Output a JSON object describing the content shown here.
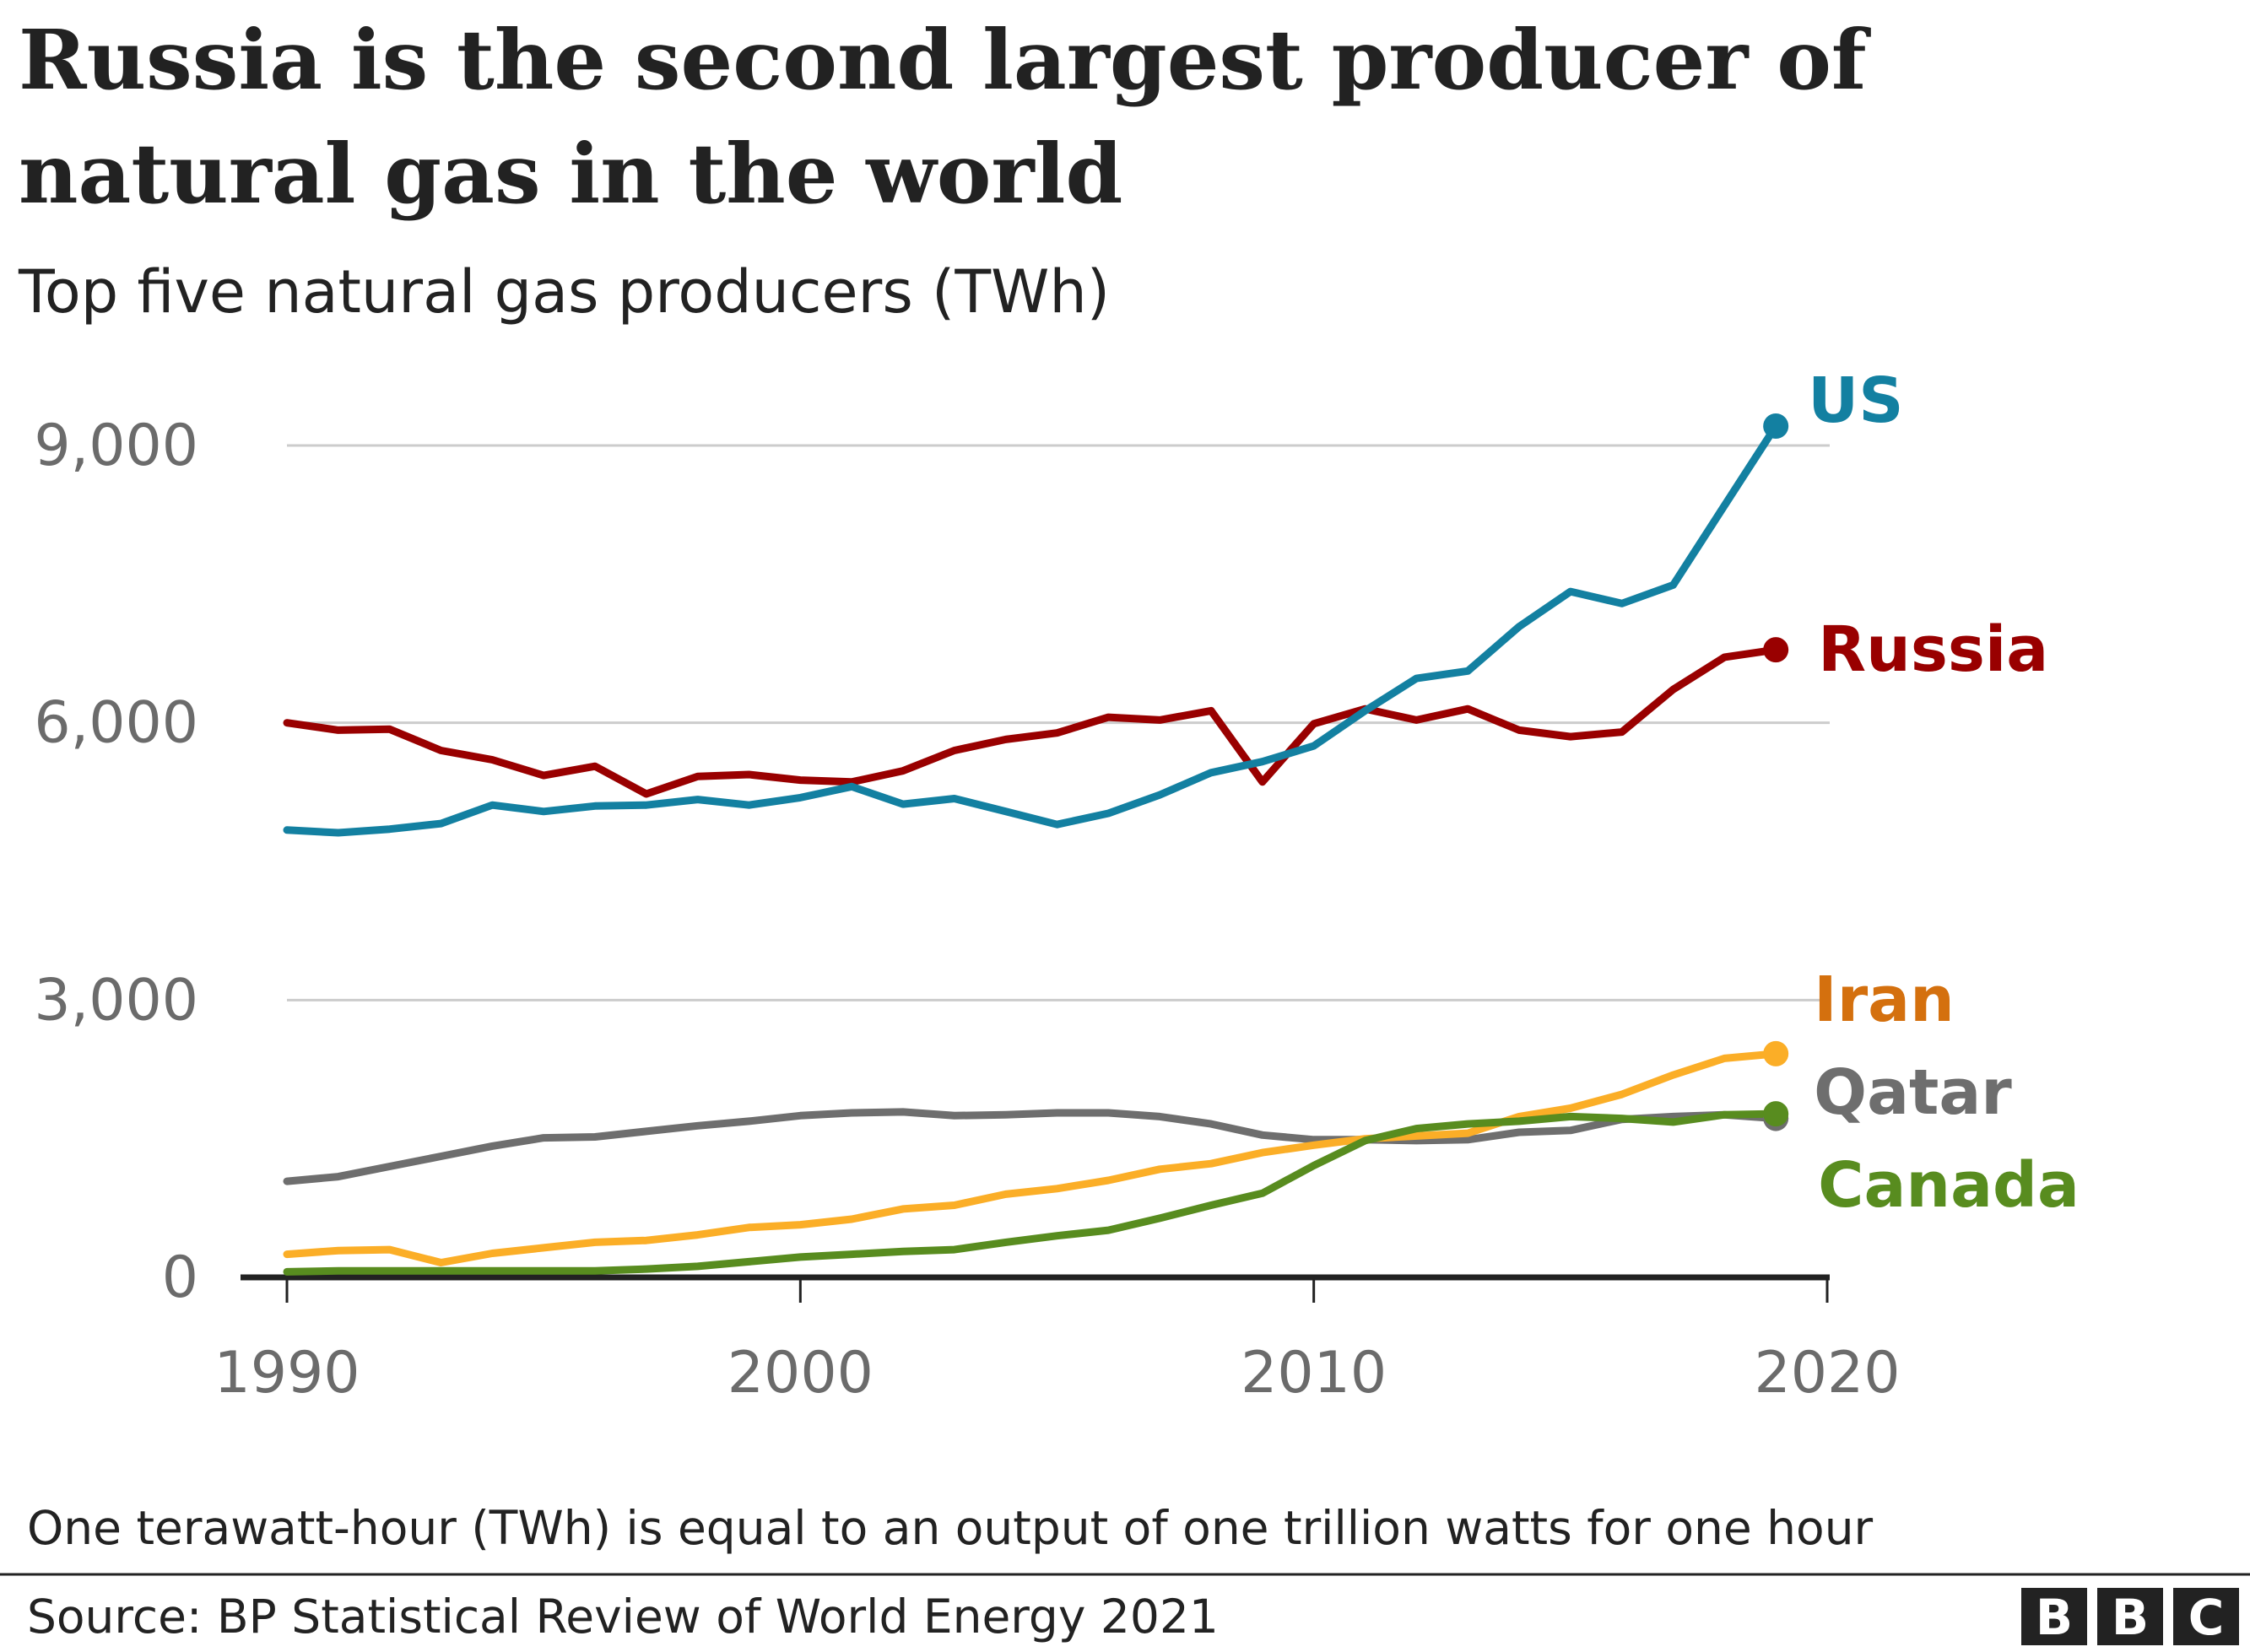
{
  "title_line1": "Russia is the second largest producer of",
  "title_line2": "natural gas in the world",
  "subtitle": "Top five natural gas producers (TWh)",
  "note": "One terawatt-hour (TWh) is equal to an output of one trillion watts for one hour",
  "source": "Source: BP Statistical Review of World Energy 2021",
  "logo": {
    "letters": [
      "B",
      "B",
      "C"
    ],
    "color": "#222222"
  },
  "chart_data": {
    "type": "line",
    "title": "Russia is the second largest producer of natural gas in the world",
    "subtitle": "Top five natural gas producers (TWh)",
    "xlabel": "",
    "ylabel": "",
    "xlim": [
      1990,
      2020
    ],
    "ylim": [
      0,
      9000
    ],
    "x_ticks": [
      1990,
      2000,
      2010,
      2020
    ],
    "x_tick_labels": [
      "1990",
      "2000",
      "2010",
      "2020"
    ],
    "y_ticks": [
      0,
      3000,
      6000,
      9000
    ],
    "y_tick_labels": [
      "0",
      "3,000",
      "6,000",
      "9,000"
    ],
    "grid": true,
    "legend": "direct labels at line ends (right)",
    "x": [
      1990,
      1991,
      1992,
      1993,
      1994,
      1995,
      1996,
      1997,
      1998,
      1999,
      2000,
      2001,
      2002,
      2003,
      2004,
      2005,
      2006,
      2007,
      2008,
      2009,
      2010,
      2011,
      2012,
      2013,
      2014,
      2015,
      2016,
      2017,
      2018,
      2019
    ],
    "series": [
      {
        "name": "US",
        "color": "#1380a1",
        "label_color": "#1380a1",
        "values": [
          4840,
          4810,
          4850,
          4910,
          5110,
          5040,
          5100,
          5110,
          5170,
          5110,
          5190,
          5310,
          5120,
          5180,
          5040,
          4900,
          5020,
          5220,
          5460,
          5580,
          5750,
          6130,
          6480,
          6560,
          7040,
          7420,
          7290,
          7490,
          8350,
          9210
        ]
      },
      {
        "name": "Russia",
        "color": "#990000",
        "label_color": "#990000",
        "values": [
          6000,
          5920,
          5930,
          5700,
          5600,
          5430,
          5530,
          5230,
          5420,
          5440,
          5380,
          5360,
          5480,
          5700,
          5820,
          5890,
          6060,
          6030,
          6130,
          5360,
          5990,
          6150,
          6030,
          6150,
          5920,
          5850,
          5900,
          6360,
          6710,
          6790
        ]
      },
      {
        "name": "Iran",
        "color": "#fbae27",
        "label_color": "#d4700e",
        "values": [
          250,
          290,
          300,
          160,
          260,
          320,
          380,
          400,
          460,
          540,
          570,
          630,
          740,
          780,
          900,
          960,
          1050,
          1170,
          1230,
          1350,
          1430,
          1500,
          1530,
          1560,
          1740,
          1830,
          1980,
          2190,
          2370,
          2420
        ]
      },
      {
        "name": "Qatar",
        "color": "#6e6e6e",
        "label_color": "#6e6e6e",
        "values": [
          1040,
          1090,
          1200,
          1310,
          1420,
          1510,
          1520,
          1580,
          1640,
          1690,
          1750,
          1780,
          1790,
          1750,
          1760,
          1780,
          1780,
          1740,
          1660,
          1540,
          1490,
          1490,
          1480,
          1490,
          1570,
          1590,
          1710,
          1740,
          1760,
          1720
        ]
      },
      {
        "name": "Canada",
        "color": "#588c1f",
        "label_color": "#588c1f",
        "values": [
          60,
          70,
          70,
          70,
          70,
          70,
          70,
          90,
          120,
          170,
          220,
          250,
          280,
          300,
          380,
          450,
          510,
          640,
          780,
          910,
          1210,
          1480,
          1610,
          1660,
          1690,
          1740,
          1720,
          1680,
          1760,
          1770
        ]
      }
    ]
  }
}
